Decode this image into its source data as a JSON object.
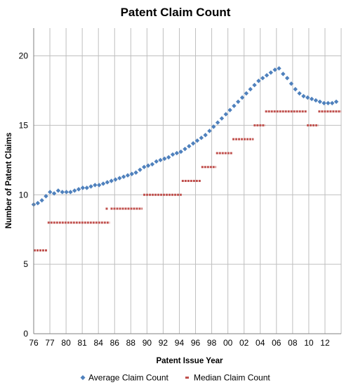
{
  "chart_data": {
    "type": "scatter",
    "title": "Patent Claim Count",
    "xlabel": "Patent Issue Year",
    "ylabel": "Number of Patent Claims",
    "ylim": [
      0,
      22
    ],
    "yticks": [
      0,
      5,
      10,
      15,
      20
    ],
    "xlim": [
      1976,
      2013.6
    ],
    "x_tick_labels": [
      "76",
      "77",
      "80",
      "81",
      "84",
      "86",
      "88",
      "90",
      "92",
      "94",
      "96",
      "98",
      "00",
      "02",
      "04",
      "06",
      "08",
      "10",
      "12"
    ],
    "grid": true,
    "legend_position": "bottom",
    "series": [
      {
        "name": "Average Claim Count",
        "marker": "diamond",
        "color": "#4f81bd",
        "x": [
          1976.0,
          1976.5,
          1977.0,
          1977.5,
          1978.0,
          1978.5,
          1979.0,
          1979.5,
          1980.0,
          1980.5,
          1981.0,
          1981.5,
          1982.0,
          1982.5,
          1983.0,
          1983.5,
          1984.0,
          1984.5,
          1985.0,
          1985.5,
          1986.0,
          1986.5,
          1987.0,
          1987.5,
          1988.0,
          1988.5,
          1989.0,
          1989.5,
          1990.0,
          1990.5,
          1991.0,
          1991.5,
          1992.0,
          1992.5,
          1993.0,
          1993.5,
          1994.0,
          1994.5,
          1995.0,
          1995.5,
          1996.0,
          1996.5,
          1997.0,
          1997.5,
          1998.0,
          1998.5,
          1999.0,
          1999.5,
          2000.0,
          2000.5,
          2001.0,
          2001.5,
          2002.0,
          2002.5,
          2003.0,
          2003.5,
          2004.0,
          2004.5,
          2005.0,
          2005.5,
          2006.0,
          2006.5,
          2007.0,
          2007.5,
          2008.0,
          2008.5,
          2009.0,
          2009.5,
          2010.0,
          2010.5,
          2011.0,
          2011.5,
          2012.0,
          2012.5,
          2013.0
        ],
        "y": [
          9.3,
          9.4,
          9.6,
          9.9,
          10.2,
          10.1,
          10.3,
          10.2,
          10.2,
          10.2,
          10.3,
          10.4,
          10.5,
          10.5,
          10.6,
          10.7,
          10.7,
          10.8,
          10.9,
          11.0,
          11.1,
          11.2,
          11.3,
          11.4,
          11.5,
          11.6,
          11.8,
          12.0,
          12.1,
          12.2,
          12.4,
          12.5,
          12.6,
          12.7,
          12.9,
          13.0,
          13.1,
          13.3,
          13.5,
          13.7,
          13.9,
          14.1,
          14.3,
          14.6,
          14.9,
          15.2,
          15.5,
          15.8,
          16.1,
          16.4,
          16.7,
          17.0,
          17.3,
          17.6,
          17.9,
          18.2,
          18.4,
          18.6,
          18.8,
          19.0,
          19.1,
          18.7,
          18.4,
          18.0,
          17.6,
          17.3,
          17.1,
          17.0,
          16.9,
          16.8,
          16.7,
          16.6,
          16.6,
          16.6,
          16.7
        ]
      },
      {
        "name": "Median Claim Count",
        "marker": "dash",
        "color": "#c0504d",
        "segments": [
          {
            "x": [
              1976.0,
              1977.7
            ],
            "y": 6
          },
          {
            "x": [
              1977.7,
              1985.3
            ],
            "y": 8
          },
          {
            "x": [
              1984.8,
              1985.1
            ],
            "y": 9
          },
          {
            "x": [
              1985.4,
              1989.3
            ],
            "y": 9
          },
          {
            "x": [
              1989.4,
              1994.1
            ],
            "y": 10
          },
          {
            "x": [
              1994.1,
              1996.5
            ],
            "y": 11
          },
          {
            "x": [
              1996.5,
              1998.3
            ],
            "y": 12
          },
          {
            "x": [
              1998.3,
              2000.3
            ],
            "y": 13
          },
          {
            "x": [
              2000.3,
              2002.9
            ],
            "y": 14
          },
          {
            "x": [
              2002.9,
              2004.3
            ],
            "y": 15
          },
          {
            "x": [
              2004.3,
              2009.4
            ],
            "y": 16
          },
          {
            "x": [
              2009.4,
              2010.8
            ],
            "y": 15
          },
          {
            "x": [
              2010.8,
              2013.6
            ],
            "y": 16
          }
        ]
      }
    ]
  }
}
